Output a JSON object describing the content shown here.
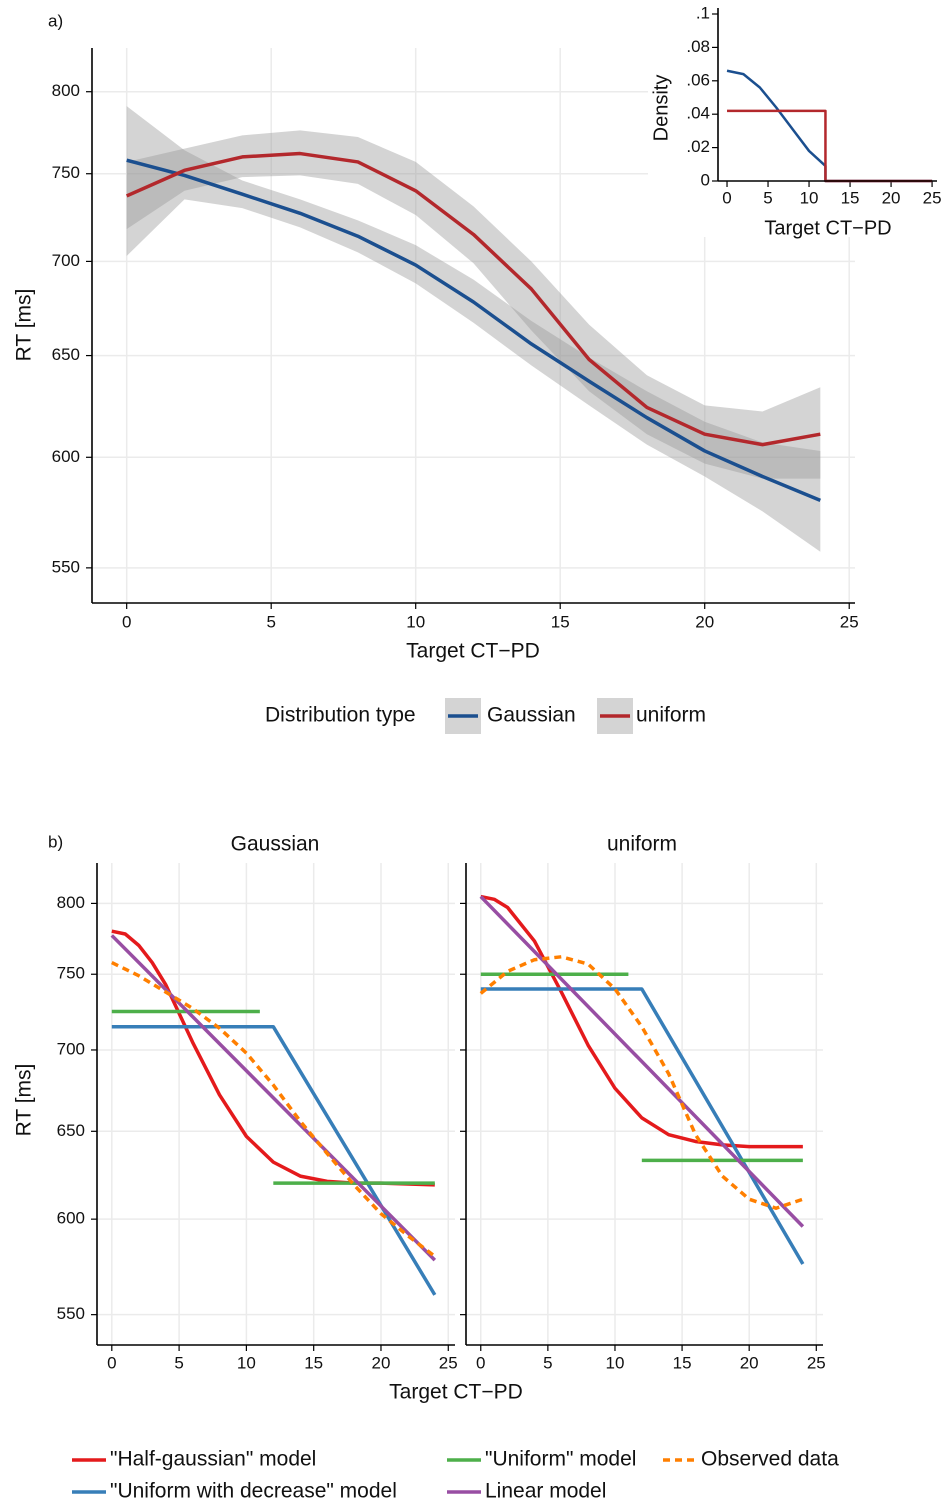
{
  "chart_data": [
    {
      "type": "line",
      "label": "a)",
      "xlabel": "Target CT−PD",
      "ylabel": "RT [ms]",
      "log_y": true,
      "grid": true,
      "legend_title": "Distribution type",
      "xlim": [
        -1.2,
        25.2
      ],
      "xticks": [
        0,
        5,
        10,
        15,
        20,
        25
      ],
      "ylim": [
        535,
        828
      ],
      "yticks": [
        550,
        600,
        650,
        700,
        750,
        800
      ],
      "series": [
        {
          "name": "Gaussian",
          "color": "#1b4f8f",
          "x": [
            0,
            2,
            4,
            6,
            8,
            10,
            12,
            14,
            16,
            18,
            20,
            22,
            24
          ],
          "values": [
            758,
            749,
            738,
            727,
            714,
            698,
            678,
            656,
            637,
            619,
            603,
            591,
            580
          ],
          "lower": [
            703,
            735,
            730,
            719,
            705,
            688,
            667,
            645,
            625,
            606,
            591,
            575,
            557
          ],
          "upper": [
            791,
            764,
            746,
            735,
            723,
            709,
            690,
            668,
            649,
            632,
            617,
            607,
            603
          ]
        },
        {
          "name": "uniform",
          "color": "#b3282c",
          "x": [
            0,
            2,
            4,
            6,
            8,
            10,
            12,
            14,
            16,
            18,
            20,
            22,
            24
          ],
          "values": [
            737,
            752,
            760,
            762,
            757,
            740,
            715,
            685,
            648,
            624,
            611,
            606,
            611
          ],
          "lower": [
            718,
            740,
            748,
            749,
            744,
            726,
            699,
            663,
            632,
            611,
            597,
            590,
            590
          ],
          "upper": [
            757,
            765,
            773,
            776,
            772,
            757,
            731,
            700,
            666,
            640,
            625,
            622,
            634
          ]
        }
      ]
    },
    {
      "type": "line",
      "xlabel": "Target CT−PD",
      "ylabel": "Density",
      "xlim": [
        -1.1,
        25.6
      ],
      "xticks": [
        0,
        5,
        10,
        15,
        20,
        25
      ],
      "ylim": [
        0,
        0.1
      ],
      "yticks": [
        0,
        {
          "value": 0.02,
          "label": ".02"
        },
        {
          "value": 0.04,
          "label": ".04"
        },
        {
          "value": 0.06,
          "label": ".06"
        },
        {
          "value": 0.08,
          "label": ".08"
        },
        {
          "value": 0.1,
          "label": ".1"
        }
      ],
      "series": [
        {
          "color": "#1b4f8f",
          "x": [
            0,
            2,
            4,
            6,
            8,
            10,
            12,
            12,
            25
          ],
          "values": [
            0.066,
            0.064,
            0.056,
            0.044,
            0.031,
            0.018,
            0.009,
            0,
            0
          ]
        },
        {
          "color": "#b3282c",
          "x": [
            0,
            12,
            12,
            25
          ],
          "values": [
            0.042,
            0.042,
            0,
            0
          ]
        }
      ]
    },
    {
      "type": "line",
      "label": "b)",
      "title": "Gaussian",
      "xlabel": "Target CT−PD",
      "ylabel": "RT [ms]",
      "log_y": true,
      "grid": true,
      "xlim": [
        -1.1,
        25.5
      ],
      "xticks": [
        0,
        5,
        10,
        15,
        20,
        25
      ],
      "ylim": [
        535,
        830
      ],
      "yticks": [
        550,
        600,
        650,
        700,
        750,
        800
      ],
      "series": [
        {
          "name": "\"Half-gaussian\" model",
          "color": "#e41a1c",
          "x": [
            0,
            1,
            2,
            3,
            4,
            6,
            8,
            10,
            12,
            14,
            16,
            18,
            20,
            24
          ],
          "values": [
            780,
            778,
            770,
            758,
            743,
            705,
            672,
            647,
            632,
            624,
            621,
            620,
            620,
            619
          ]
        },
        {
          "name": "\"Uniform with decrease\" model",
          "color": "#377eb8",
          "x": [
            0,
            12,
            24
          ],
          "values": [
            715,
            715,
            560
          ]
        },
        {
          "name": "\"Uniform\" model",
          "color": "#4daf4a",
          "x": [
            0,
            11,
            11.5,
            12,
            24
          ],
          "values": [
            725,
            725,
            null,
            620,
            620
          ]
        },
        {
          "name": "Linear model",
          "color": "#984ea3",
          "x": [
            0,
            24
          ],
          "values": [
            777,
            578
          ]
        },
        {
          "name": "Observed data",
          "color": "#ff7f00",
          "dash": true,
          "x": [
            0,
            2,
            4,
            6,
            8,
            10,
            12,
            14,
            16,
            18,
            20,
            22,
            24
          ],
          "values": [
            758,
            749,
            738,
            727,
            714,
            698,
            678,
            656,
            637,
            619,
            603,
            591,
            580
          ]
        }
      ]
    },
    {
      "type": "line",
      "title": "uniform",
      "log_y": true,
      "grid": true,
      "ytick_labels": false,
      "xlim": [
        -1.1,
        25.5
      ],
      "xticks": [
        0,
        5,
        10,
        15,
        20,
        25
      ],
      "ylim": [
        535,
        830
      ],
      "yticks": [
        550,
        600,
        650,
        700,
        750,
        800
      ],
      "series": [
        {
          "color": "#e41a1c",
          "x": [
            0,
            1,
            2,
            4,
            6,
            8,
            10,
            12,
            14,
            16,
            18,
            20,
            24
          ],
          "values": [
            805,
            803,
            797,
            773,
            738,
            703,
            676,
            658,
            648,
            644,
            642,
            641,
            641
          ]
        },
        {
          "color": "#377eb8",
          "x": [
            0,
            12,
            24
          ],
          "values": [
            740,
            740,
            576
          ]
        },
        {
          "color": "#4daf4a",
          "x": [
            0,
            11,
            11.5,
            12,
            24
          ],
          "values": [
            750,
            750,
            null,
            633,
            633
          ]
        },
        {
          "color": "#984ea3",
          "x": [
            0,
            24
          ],
          "values": [
            805,
            596
          ]
        },
        {
          "color": "#ff7f00",
          "dash": true,
          "x": [
            0,
            2,
            4,
            6,
            8,
            10,
            12,
            14,
            16,
            18,
            20,
            22,
            24
          ],
          "values": [
            737,
            752,
            760,
            762,
            757,
            740,
            715,
            685,
            648,
            624,
            611,
            606,
            611
          ]
        }
      ]
    }
  ]
}
